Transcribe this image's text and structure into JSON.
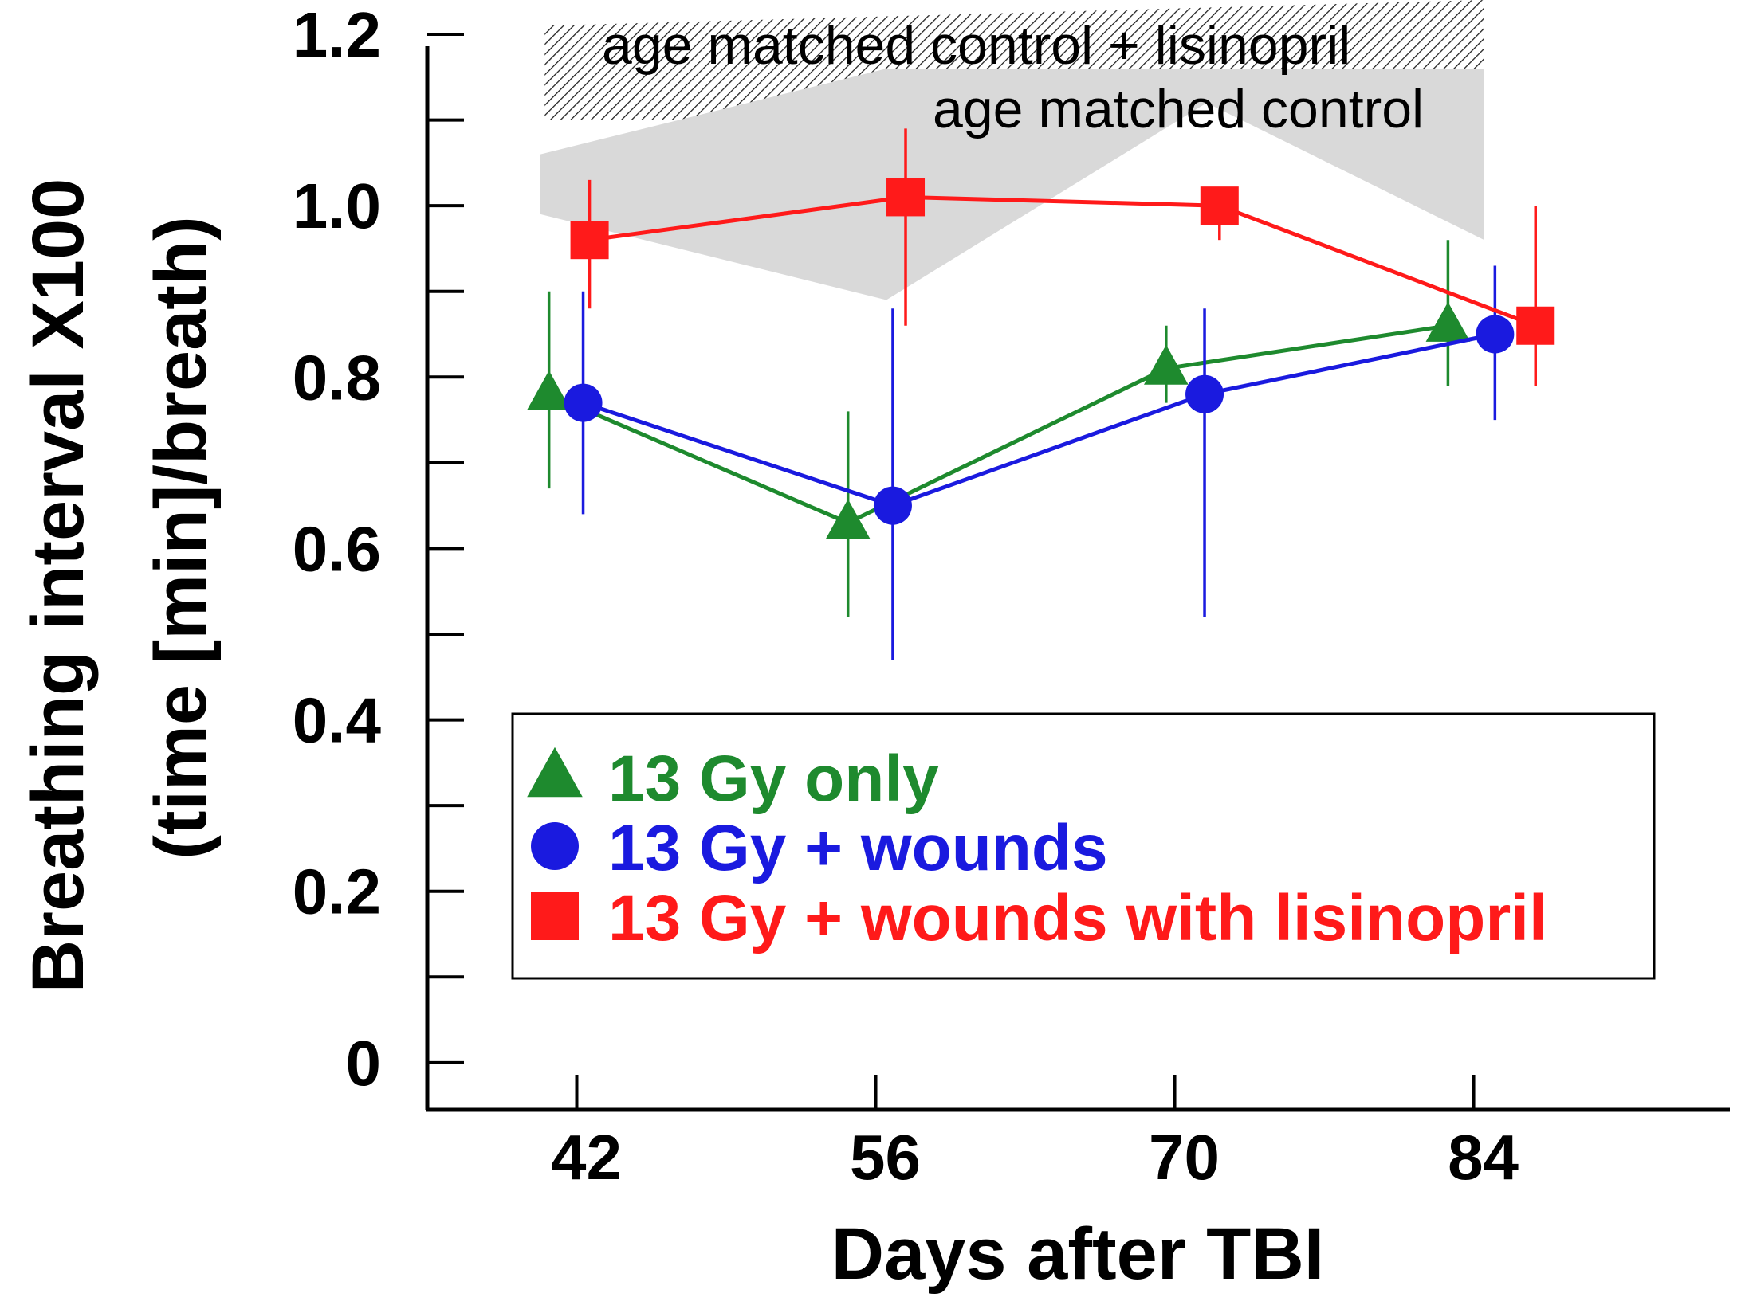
{
  "chart_data": {
    "type": "line",
    "title": "",
    "xlabel": "Days after TBI",
    "ylabel_line1": "Breathing interval X100",
    "ylabel_line2": "(time [min]/breath)",
    "x_ticks": [
      42,
      56,
      70,
      84
    ],
    "x_tick_labels": [
      "42",
      "56",
      "70",
      "84"
    ],
    "xlim": [
      35,
      96
    ],
    "y_ticks": [
      0,
      0.2,
      0.4,
      0.6,
      0.8,
      1.0,
      1.2
    ],
    "y_tick_labels": [
      "0",
      "0.2",
      "0.4",
      "0.6",
      "0.8",
      "1.0",
      "1.2"
    ],
    "y_minor_ticks": [
      0.1,
      0.3,
      0.5,
      0.7,
      0.9,
      1.1
    ],
    "ylim": [
      -0.055,
      1.24
    ],
    "bands": [
      {
        "name": "age matched control + lisinopril",
        "pattern": "hatched",
        "upper": [
          [
            40.5,
            1.21
          ],
          [
            84.5,
            1.24
          ]
        ],
        "lower": [
          [
            40.5,
            1.1
          ],
          [
            56.5,
            1.1
          ],
          [
            84.5,
            1.15
          ]
        ]
      },
      {
        "name": "age matched control",
        "pattern": "solid",
        "fill_color": "#d9d9d9",
        "upper": [
          [
            40.3,
            1.06
          ],
          [
            56.5,
            1.16
          ],
          [
            84.5,
            1.16
          ]
        ],
        "lower": [
          [
            40.3,
            0.99
          ],
          [
            56.5,
            0.89
          ],
          [
            71.5,
            1.12
          ],
          [
            84.5,
            0.96
          ]
        ]
      }
    ],
    "series": [
      {
        "name": "13 Gy only",
        "color": "#1e8a2e",
        "marker": "triangle",
        "x": [
          40.7,
          54.7,
          69.6,
          82.8
        ],
        "y": [
          0.78,
          0.63,
          0.81,
          0.86
        ],
        "err_low": [
          0.67,
          0.52,
          0.77,
          0.79
        ],
        "err_high": [
          0.9,
          0.76,
          0.86,
          0.96
        ]
      },
      {
        "name": "13 Gy + wounds",
        "color": "#1a1adf",
        "marker": "circle",
        "x": [
          42.3,
          56.8,
          71.4,
          85.0
        ],
        "y": [
          0.77,
          0.65,
          0.78,
          0.85
        ],
        "err_low": [
          0.64,
          0.47,
          0.52,
          0.75
        ],
        "err_high": [
          0.9,
          0.88,
          0.88,
          0.93
        ]
      },
      {
        "name": "13 Gy + wounds with lisinopril",
        "color": "#ff1a1a",
        "marker": "square",
        "x": [
          42.6,
          57.4,
          72.1,
          86.9
        ],
        "y": [
          0.96,
          1.01,
          1.0,
          0.86
        ],
        "err_low": [
          0.88,
          0.86,
          0.96,
          0.79
        ],
        "err_high": [
          1.03,
          1.09,
          1.0,
          1.0
        ]
      }
    ],
    "legend": {
      "placement": "lower-center",
      "entries": [
        "13 Gy only",
        "13 Gy + wounds",
        "13 Gy + wounds with lisinopril"
      ]
    }
  }
}
